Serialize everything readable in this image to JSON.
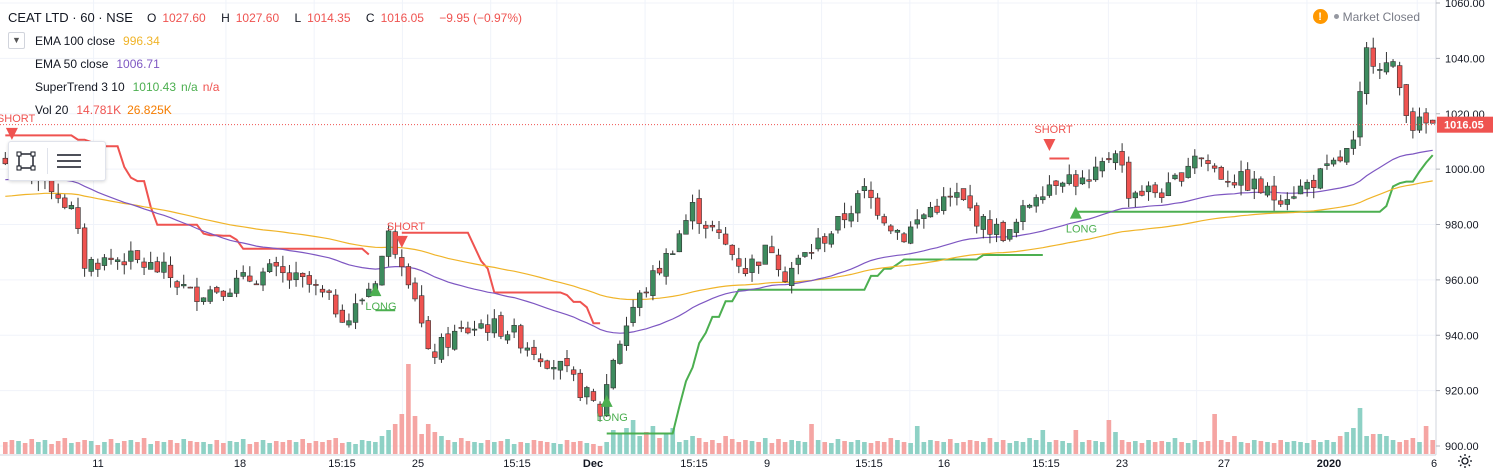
{
  "header": {
    "symbol": "CEAT LTD · 60 · NSE",
    "open_label": "O",
    "open": "1027.60",
    "high_label": "H",
    "high": "1027.60",
    "low_label": "L",
    "low": "1014.35",
    "close_label": "C",
    "close": "1016.05",
    "change": "−9.95 (−0.97%)",
    "market_status": "Market Closed"
  },
  "indicators": [
    {
      "name": "EMA 100 close",
      "values": [
        "996.34"
      ],
      "colors": [
        "#f0b429"
      ]
    },
    {
      "name": "EMA 50 close",
      "values": [
        "1006.71"
      ],
      "colors": [
        "#7e57c2"
      ]
    },
    {
      "name": "SuperTrend 3 10",
      "values": [
        "1010.43",
        "n/a",
        "n/a"
      ],
      "colors": [
        "#4caf50",
        "#4caf50",
        "#ef5350"
      ]
    },
    {
      "name": "Vol 20",
      "values": [
        "14.781K",
        "26.825K"
      ],
      "colors": [
        "#ef5350",
        "#f57c00"
      ]
    }
  ],
  "colors": {
    "up": "#26a69a",
    "down": "#ef5350",
    "up_body": "#3d8b5e",
    "ema100": "#f0b429",
    "ema50": "#7e57c2",
    "st_up": "#4caf50",
    "st_down": "#ef5350",
    "vol_up": "#8ed1c5",
    "vol_down": "#f5a5a3",
    "last_price_bg": "#ef5350"
  },
  "chart_data": {
    "type": "candlestick",
    "y_axis": {
      "min": 900,
      "max": 1060,
      "ticks": [
        "900.00",
        "920.00",
        "940.00",
        "960.00",
        "980.00",
        "1000.00",
        "1020.00",
        "1040.00",
        "1060.00"
      ],
      "position": "right"
    },
    "x_ticks": [
      "11",
      "18",
      "15:15",
      "25",
      "15:15",
      "Dec",
      "15:15",
      "9",
      "15:15",
      "16",
      "15:15",
      "23",
      "27",
      "2020",
      "6"
    ],
    "last_price": "1016.05",
    "signals": [
      {
        "label": "SHORT",
        "bar": 1,
        "price": 1012
      },
      {
        "label": "LONG",
        "bar": 56,
        "price": 957
      },
      {
        "label": "SHORT",
        "bar": 60,
        "price": 973
      },
      {
        "label": "LONG",
        "bar": 91,
        "price": 917
      },
      {
        "label": "SHORT",
        "bar": 158,
        "price": 1008
      },
      {
        "label": "LONG",
        "bar": 162,
        "price": 985
      }
    ],
    "close_path": [
      [
        0,
        1002
      ],
      [
        6,
        997
      ],
      [
        10,
        985
      ],
      [
        12,
        966
      ],
      [
        18,
        968
      ],
      [
        24,
        963
      ],
      [
        28,
        955
      ],
      [
        34,
        958
      ],
      [
        40,
        963
      ],
      [
        46,
        958
      ],
      [
        52,
        946
      ],
      [
        56,
        961
      ],
      [
        58,
        976
      ],
      [
        60,
        968
      ],
      [
        62,
        955
      ],
      [
        64,
        932
      ],
      [
        68,
        940
      ],
      [
        72,
        944
      ],
      [
        76,
        942
      ],
      [
        80,
        935
      ],
      [
        84,
        928
      ],
      [
        88,
        918
      ],
      [
        90,
        912
      ],
      [
        92,
        932
      ],
      [
        95,
        950
      ],
      [
        100,
        968
      ],
      [
        104,
        986
      ],
      [
        108,
        975
      ],
      [
        112,
        964
      ],
      [
        116,
        972
      ],
      [
        118,
        962
      ],
      [
        122,
        971
      ],
      [
        126,
        980
      ],
      [
        130,
        992
      ],
      [
        134,
        980
      ],
      [
        136,
        976
      ],
      [
        140,
        986
      ],
      [
        144,
        990
      ],
      [
        148,
        980
      ],
      [
        152,
        976
      ],
      [
        156,
        992
      ],
      [
        160,
        998
      ],
      [
        164,
        994
      ],
      [
        168,
        1008
      ],
      [
        170,
        992
      ],
      [
        176,
        992
      ],
      [
        180,
        1006
      ],
      [
        184,
        998
      ],
      [
        188,
        995
      ],
      [
        192,
        990
      ],
      [
        196,
        993
      ],
      [
        200,
        999
      ],
      [
        204,
        1008
      ],
      [
        206,
        1042
      ],
      [
        210,
        1036
      ],
      [
        213,
        1016
      ]
    ],
    "volumes": [
      12,
      14,
      13,
      11,
      15,
      12,
      14,
      10,
      13,
      16,
      11,
      12,
      14,
      13,
      9,
      12,
      15,
      11,
      13,
      14,
      12,
      16,
      10,
      13,
      12,
      14,
      11,
      15,
      13,
      12,
      12,
      10,
      14,
      11,
      13,
      12,
      15,
      10,
      12,
      14,
      11,
      13,
      12,
      14,
      12,
      15,
      11,
      13,
      12,
      14,
      16,
      11,
      12,
      10,
      14,
      13,
      12,
      18,
      24,
      30,
      40,
      90,
      38,
      20,
      30,
      22,
      18,
      14,
      12,
      16,
      13,
      12,
      11,
      14,
      12,
      13,
      15,
      10,
      12,
      11,
      14,
      13,
      12,
      11,
      10,
      14,
      12,
      13,
      11,
      10,
      8,
      12,
      24,
      20,
      26,
      34,
      18,
      22,
      28,
      16,
      20,
      26,
      12,
      14,
      18,
      16,
      12,
      14,
      11,
      18,
      15,
      12,
      14,
      13,
      12,
      16,
      11,
      15,
      12,
      14,
      13,
      12,
      30,
      14,
      12,
      11,
      15,
      13,
      12,
      14,
      12,
      11,
      13,
      12,
      16,
      14,
      12,
      11,
      28,
      12,
      14,
      13,
      12,
      15,
      11,
      12,
      14,
      13,
      12,
      16,
      12,
      14,
      11,
      13,
      12,
      16,
      14,
      24,
      12,
      14,
      13,
      11,
      24,
      12,
      14,
      13,
      12,
      34,
      22,
      14,
      12,
      13,
      11,
      14,
      12,
      13,
      12,
      16,
      12,
      11,
      14,
      12,
      13,
      40,
      14,
      12,
      18,
      12,
      11,
      14,
      13,
      12,
      11,
      14,
      12,
      13,
      12,
      11,
      14,
      12,
      14,
      12,
      18,
      22,
      26,
      46,
      18,
      20,
      20,
      18,
      14,
      12,
      14,
      16,
      12,
      28,
      14
    ]
  }
}
